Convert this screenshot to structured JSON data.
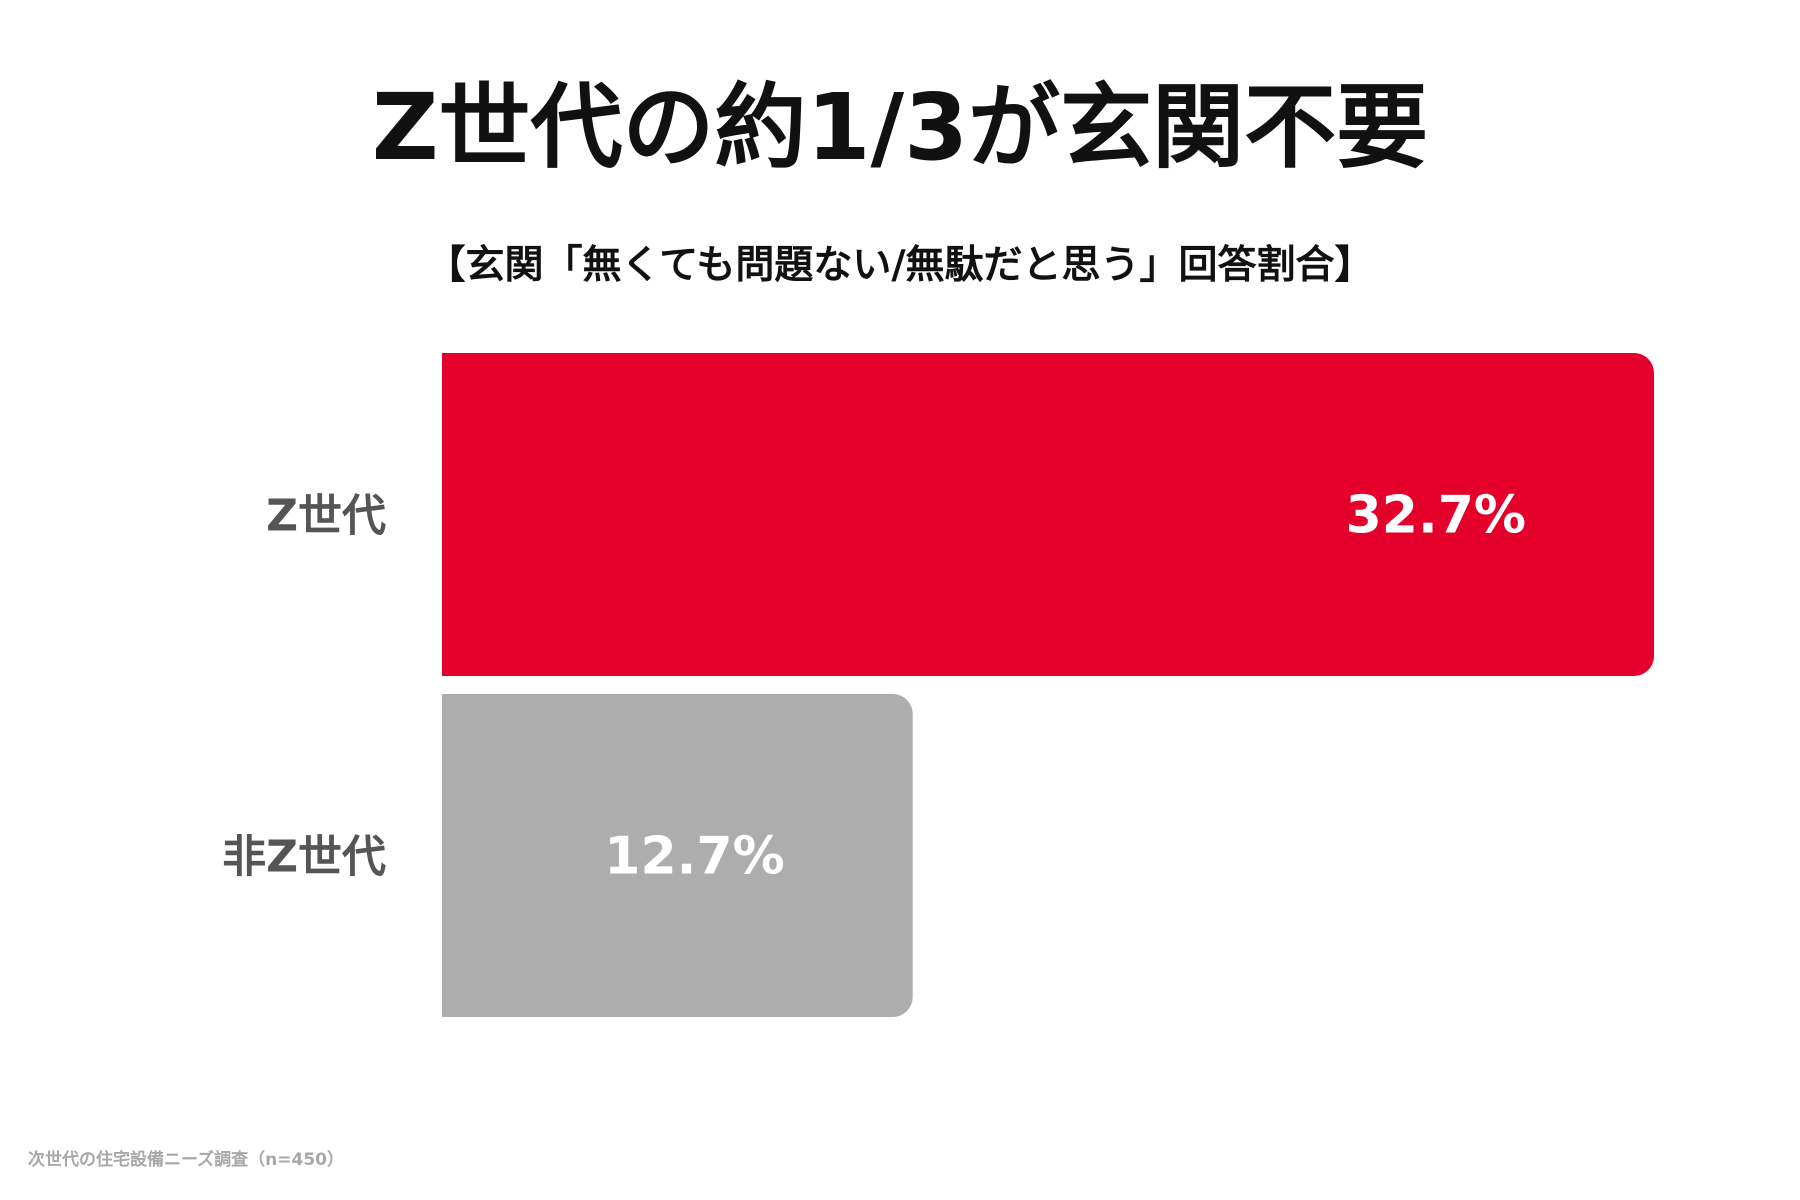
{
  "chart_data": {
    "type": "bar",
    "orientation": "horizontal",
    "title": "Z世代の約1/3が玄関不要",
    "subtitle": "【玄関「無くても問題ない/無駄だと思う」回答割合】",
    "categories": [
      "Z世代",
      "非Z世代"
    ],
    "values": [
      32.7,
      12.7
    ],
    "value_labels": [
      "32.7%",
      "12.7%"
    ],
    "colors": [
      "#e4002b",
      "#adadad"
    ],
    "label_color": "#555555",
    "value_label_color": "#ffffff",
    "xlim": [
      0,
      32.7
    ],
    "grid": false,
    "legend": "none"
  },
  "footer": {
    "source": "次世代の住宅設備ニーズ調査（n=450）"
  }
}
